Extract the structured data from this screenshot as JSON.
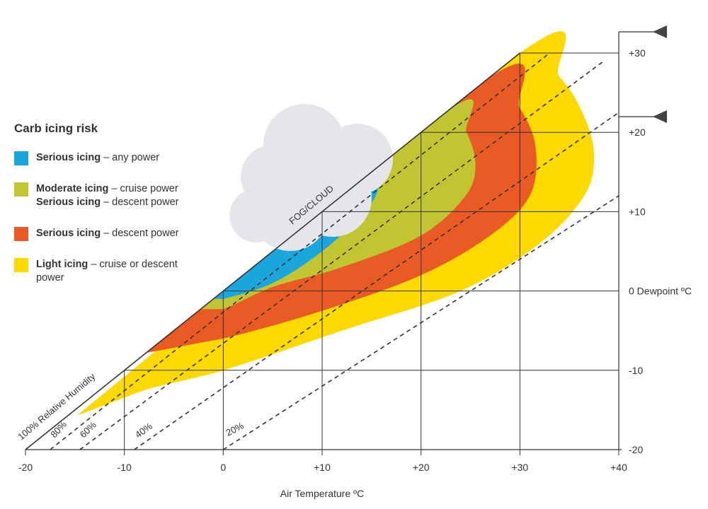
{
  "legend": {
    "title": "Carb icing risk",
    "items": [
      {
        "color": "#1ba6de",
        "strong": "Serious icing",
        "rest": " – any power",
        "line2_strong": "",
        "line2_rest": ""
      },
      {
        "color": "#c1c532",
        "strong": "Moderate icing",
        "rest": " – cruise power",
        "line2_strong": "Serious icing",
        "line2_rest": " – descent power"
      },
      {
        "color": "#e95a24",
        "strong": "Serious icing",
        "rest": " – descent power",
        "line2_strong": "",
        "line2_rest": ""
      },
      {
        "color": "#fcd900",
        "strong": "Light icing",
        "rest": " – cruise or descent power",
        "line2_strong": "",
        "line2_rest": ""
      }
    ]
  },
  "chart_data": {
    "type": "area",
    "title": "",
    "xlabel": "Air Temperature ºC",
    "ylabel": "",
    "xlim": [
      -20,
      40
    ],
    "ylim": [
      -20,
      30
    ],
    "x_ticks": [
      "-20",
      "-10",
      "0",
      "+10",
      "+20",
      "+30",
      "+40"
    ],
    "y_ticks": [
      {
        "value": 30,
        "label": "+30"
      },
      {
        "value": 20,
        "label": "+20"
      },
      {
        "value": 10,
        "label": "+10"
      },
      {
        "value": 0,
        "label": "0 Dewpoint ºC"
      },
      {
        "value": -10,
        "label": "-10"
      },
      {
        "value": -20,
        "label": "-20"
      }
    ],
    "gridlines_x": [
      -10,
      0,
      10,
      20,
      30
    ],
    "gridlines_y": [
      -10,
      0,
      10,
      20,
      30
    ],
    "humidity_lines": [
      {
        "label": "100% Relative Humidity",
        "points": [
          [
            -20,
            -20
          ],
          [
            30,
            30
          ]
        ],
        "style": "solid"
      },
      {
        "label": "80%",
        "points": [
          [
            -17.5,
            -20
          ],
          [
            33,
            30
          ]
        ],
        "style": "dashed"
      },
      {
        "label": "60%",
        "points": [
          [
            -14.5,
            -20
          ],
          [
            38.5,
            29
          ]
        ],
        "style": "dashed"
      },
      {
        "label": "40%",
        "points": [
          [
            -9,
            -20
          ],
          [
            40,
            22.5
          ]
        ],
        "style": "dashed"
      },
      {
        "label": "20%",
        "points": [
          [
            0,
            -20
          ],
          [
            40,
            12
          ]
        ],
        "style": "dashed"
      }
    ],
    "annotations": [
      {
        "text": "FOG/CLOUD"
      }
    ],
    "regions": [
      {
        "name": "Light icing – cruise or descent power",
        "color": "#fcd900",
        "points": [
          [
            -14.8,
            -15.7
          ],
          [
            30,
            30
          ],
          [
            34,
            27
          ],
          [
            36.5,
            22
          ],
          [
            37.5,
            17
          ],
          [
            36.5,
            12
          ],
          [
            32,
            6
          ],
          [
            24,
            0
          ],
          [
            12,
            -5
          ],
          [
            0,
            -10
          ],
          [
            -8,
            -12.5
          ],
          [
            -14.8,
            -15.7
          ]
        ]
      },
      {
        "name": "Serious icing – descent power",
        "color": "#e95a24",
        "points": [
          [
            -7.8,
            -7.8
          ],
          [
            26.9,
            26.9
          ],
          [
            30,
            23
          ],
          [
            31.6,
            18
          ],
          [
            31,
            12
          ],
          [
            27,
            7
          ],
          [
            20,
            2
          ],
          [
            10,
            -2.5
          ],
          [
            0,
            -6
          ],
          [
            -7.8,
            -7.8
          ]
        ]
      },
      {
        "name": "Moderate icing – cruise power / Serious icing – descent power",
        "color": "#c1c532",
        "points": [
          [
            -2.3,
            -2.3
          ],
          [
            22.9,
            22.9
          ],
          [
            24.6,
            20
          ],
          [
            25.5,
            16
          ],
          [
            24.5,
            12
          ],
          [
            20,
            7
          ],
          [
            12,
            3
          ],
          [
            5,
            0.5
          ],
          [
            0,
            -2.3
          ],
          [
            -2.3,
            -2.3
          ]
        ]
      },
      {
        "name": "Serious icing – any power",
        "color": "#1ba6de",
        "points": [
          [
            -1,
            -1
          ],
          [
            15.5,
            15.5
          ],
          [
            15.7,
            13
          ],
          [
            14.3,
            10
          ],
          [
            10,
            5
          ],
          [
            5,
            1
          ],
          [
            0,
            -1
          ],
          [
            -1,
            -1
          ]
        ]
      }
    ]
  }
}
